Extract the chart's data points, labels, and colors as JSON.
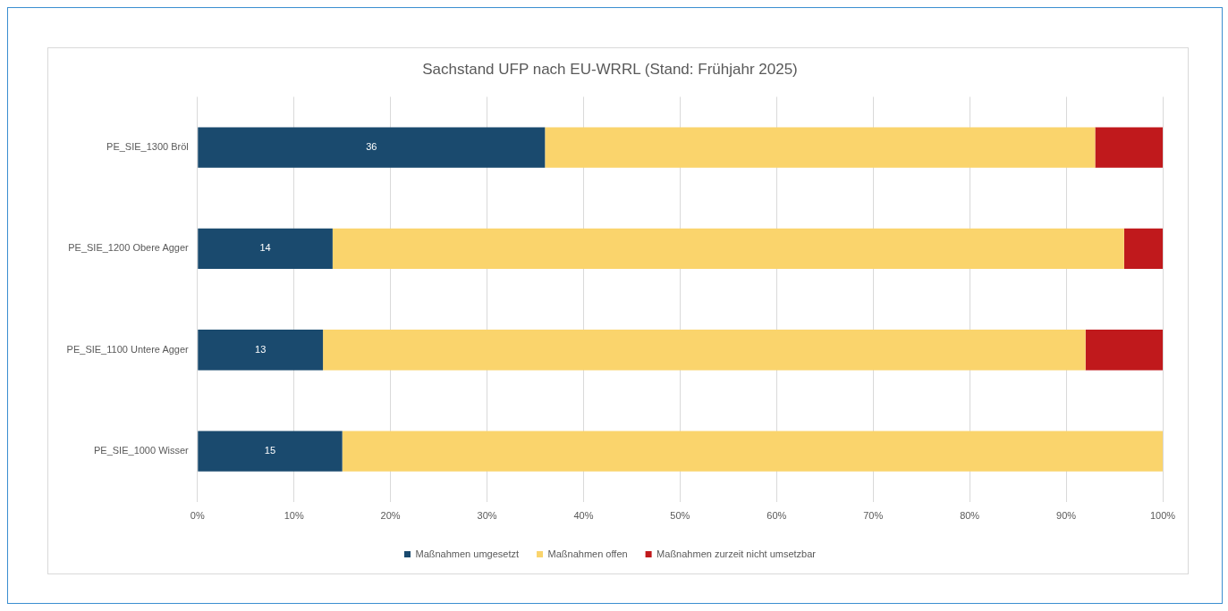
{
  "chart_data": {
    "type": "bar",
    "orientation": "horizontal",
    "stacked": true,
    "title": "Sachstand UFP nach EU-WRRL (Stand: Frühjahr 2025)",
    "categories": [
      "PE_SIE_1300 Bröl",
      "PE_SIE_1200 Obere Agger",
      "PE_SIE_1100 Untere Agger",
      "PE_SIE_1000 Wisser"
    ],
    "series": [
      {
        "name": "Maßnahmen umgesetzt",
        "color": "#1a4a6e",
        "values": [
          36,
          14,
          13,
          15
        ],
        "value_labels": [
          "36",
          "14",
          "13",
          "15"
        ]
      },
      {
        "name": "Maßnahmen offen",
        "color": "#fad46c",
        "values": [
          57,
          82,
          79,
          85
        ]
      },
      {
        "name": "Maßnahmen zurzeit nicht umsetzbar",
        "color": "#c0191c",
        "values": [
          7,
          4,
          8,
          0
        ]
      }
    ],
    "xlim": [
      0,
      100
    ],
    "xticks": [
      {
        "value": 0,
        "label": "0%"
      },
      {
        "value": 10,
        "label": "10%"
      },
      {
        "value": 20,
        "label": "20%"
      },
      {
        "value": 30,
        "label": "30%"
      },
      {
        "value": 40,
        "label": "40%"
      },
      {
        "value": 50,
        "label": "50%"
      },
      {
        "value": 60,
        "label": "60%"
      },
      {
        "value": 70,
        "label": "70%"
      },
      {
        "value": 80,
        "label": "80%"
      },
      {
        "value": 90,
        "label": "90%"
      },
      {
        "value": 100,
        "label": "100%"
      }
    ],
    "grid": "x",
    "legend": "bottom"
  }
}
